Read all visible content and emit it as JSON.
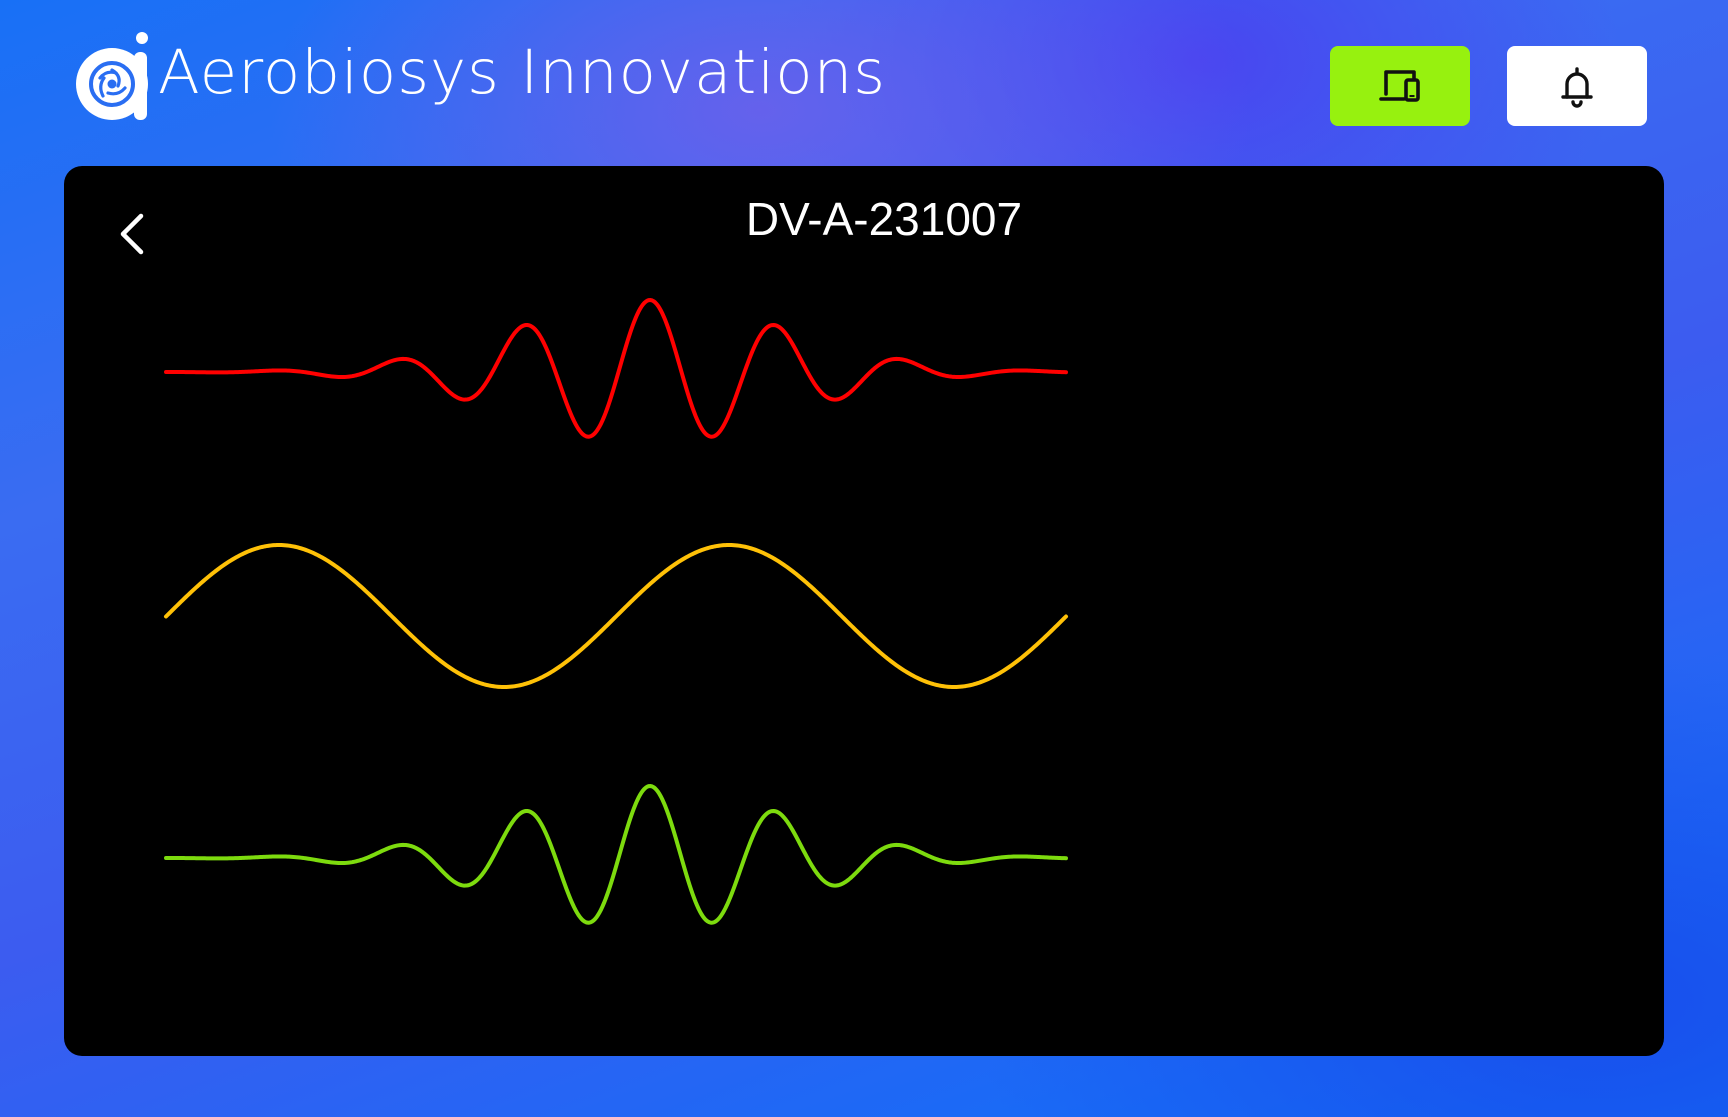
{
  "app": {
    "brand_name": "Aerobiosys Innovations",
    "logo_icon": "aerobiosys-logo-icon"
  },
  "header": {
    "devices_button": {
      "icon": "devices-icon",
      "background": "#97f10f"
    },
    "alerts_button": {
      "icon": "bell-icon",
      "background": "#ffffff"
    }
  },
  "panel": {
    "title": "DV-A-231007",
    "back_icon": "chevron-left-icon",
    "waveforms": [
      {
        "name": "",
        "color": "#ff0000",
        "shape": "gaussian-burst"
      },
      {
        "name": "",
        "color": "#ffc107",
        "shape": "sine"
      },
      {
        "name": "",
        "color": "#7ddb0e",
        "shape": "gaussian-burst"
      }
    ]
  }
}
